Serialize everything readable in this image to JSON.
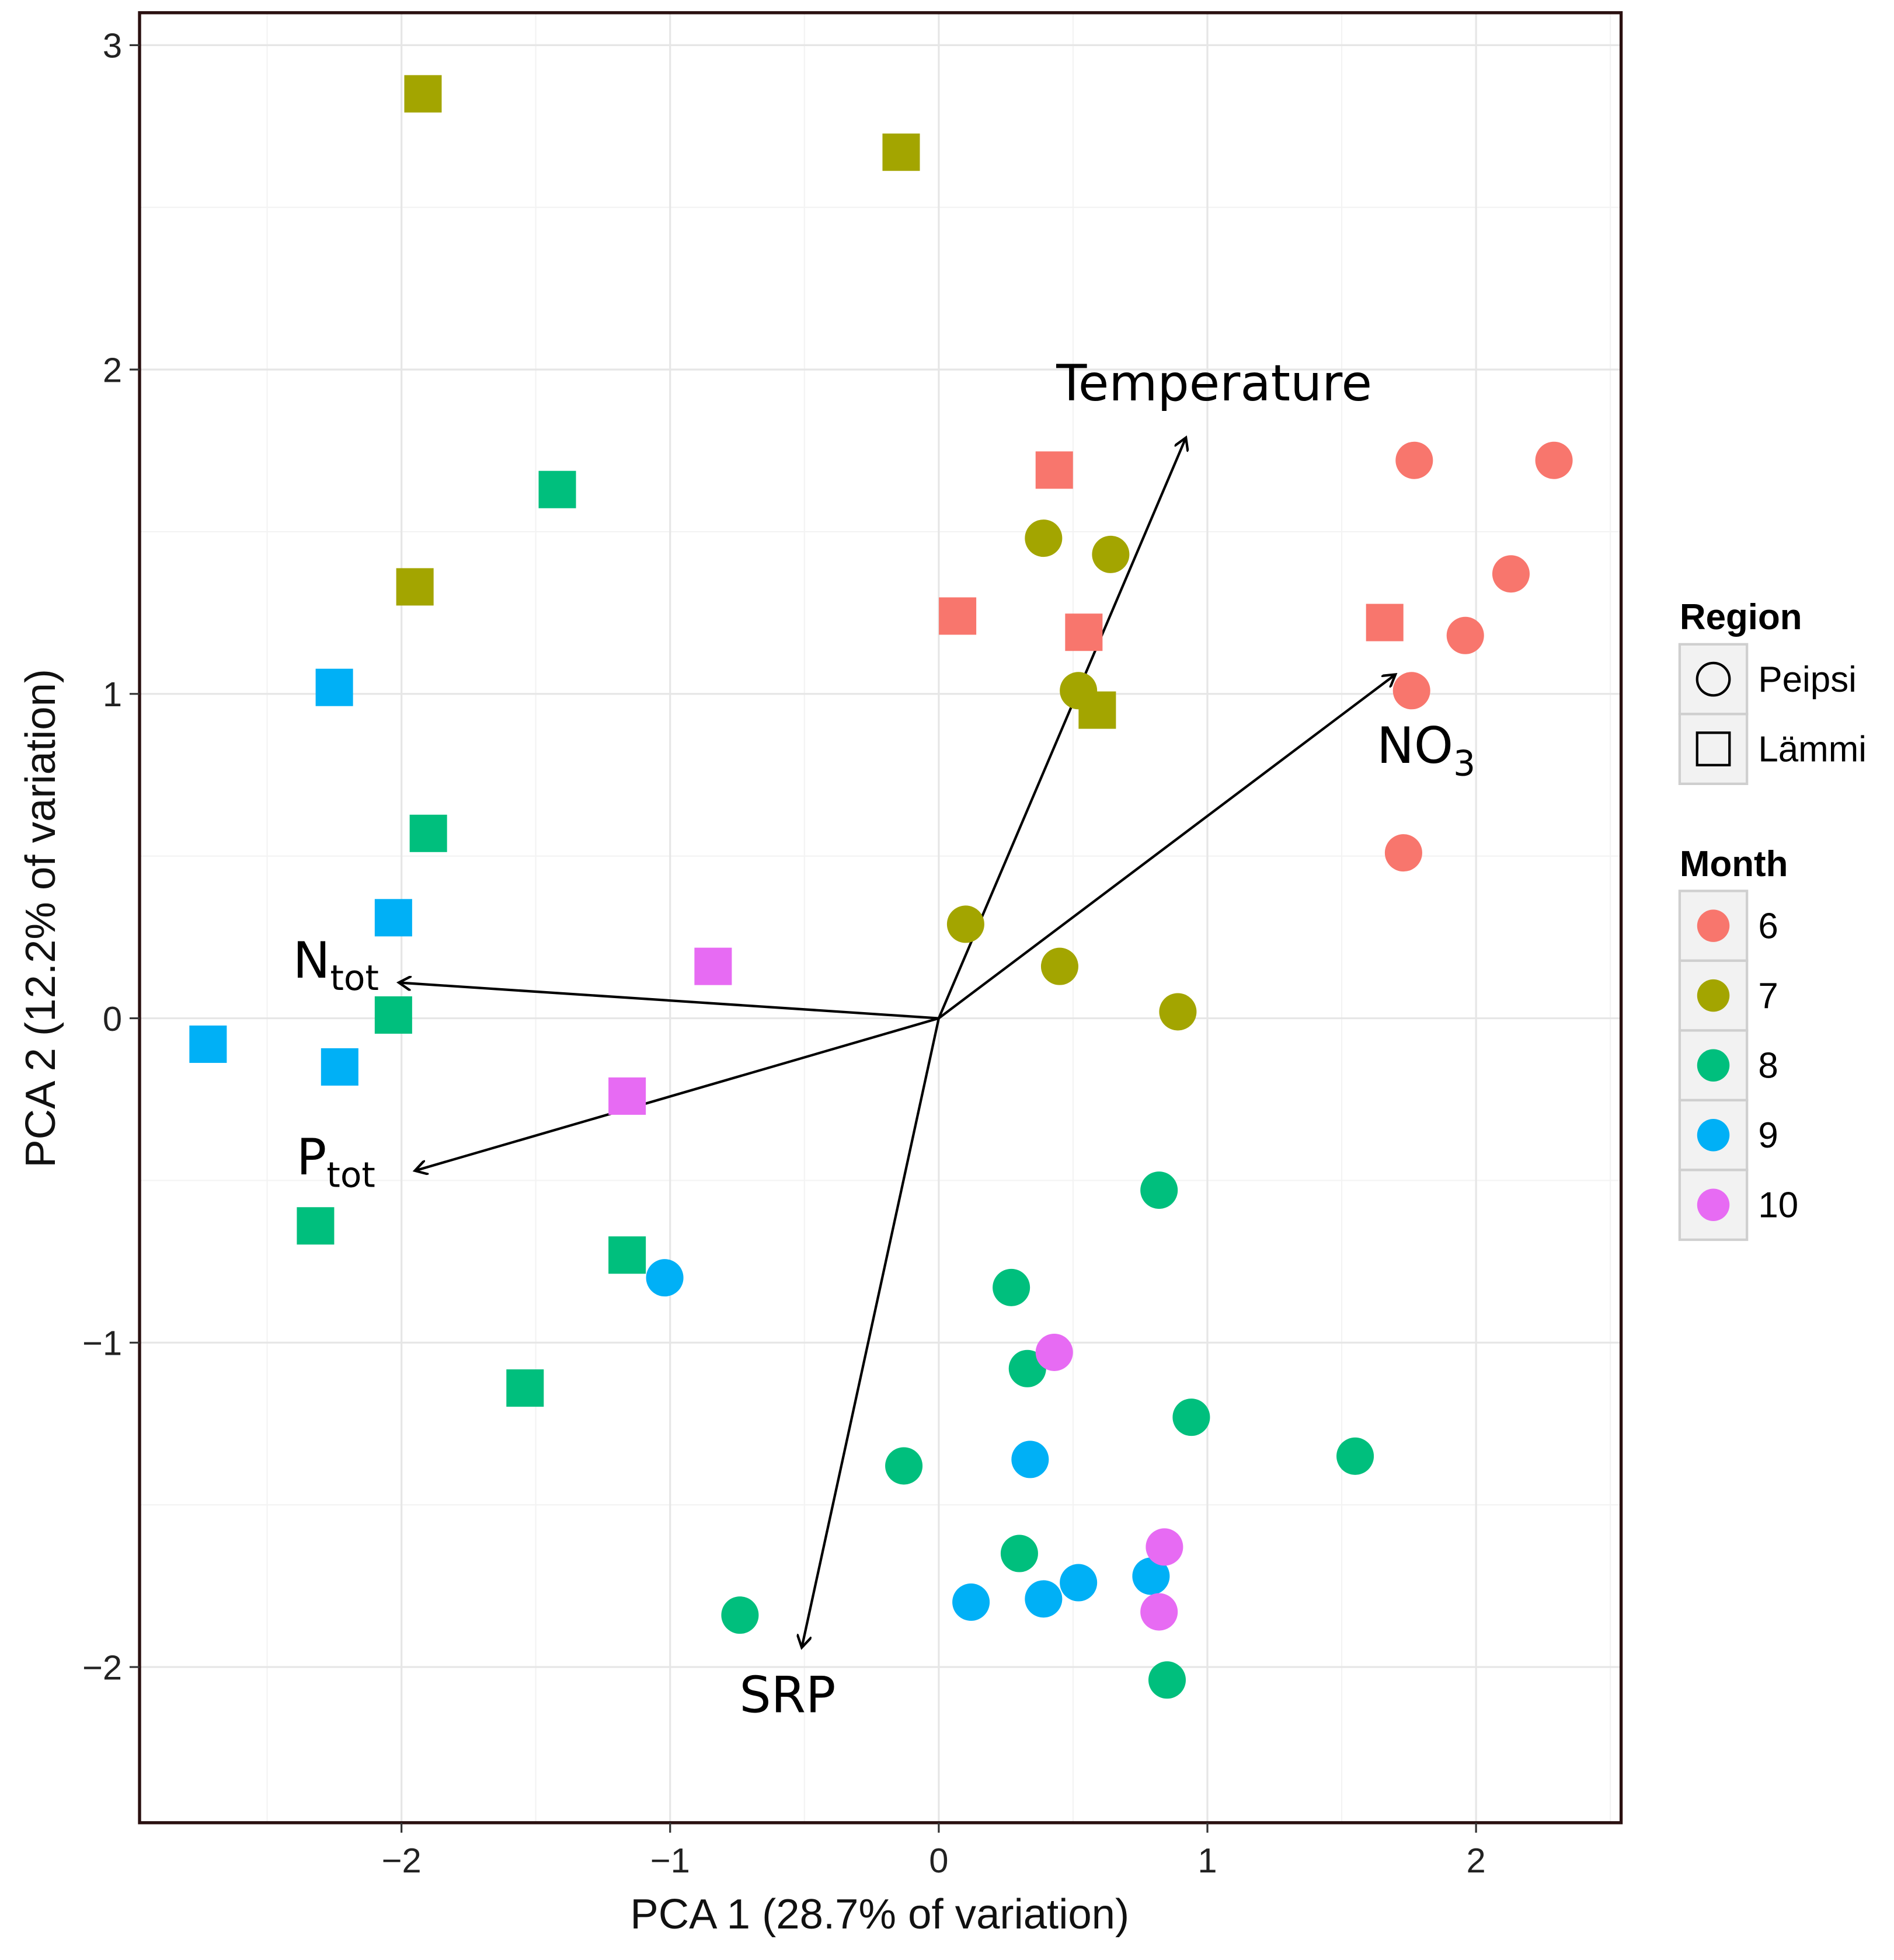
{
  "chart_data": {
    "type": "scatter",
    "title": "",
    "xlabel": "PCA 1 (28.7% of variation)",
    "ylabel": "PCA 2 (12.2% of variation)",
    "xlim": [
      -2.975,
      2.54
    ],
    "ylim": [
      -2.48,
      3.1
    ],
    "xticks": [
      -2,
      -1,
      0,
      1,
      2
    ],
    "yticks": [
      -2,
      -1,
      0,
      1,
      2,
      3
    ],
    "xtick_labels": [
      "−2",
      "−1",
      "0",
      "1",
      "2"
    ],
    "ytick_labels": [
      "−2",
      "−1",
      "0",
      "1",
      "2",
      "3"
    ],
    "grid": true,
    "legend_position": "right",
    "legend": {
      "region_title": "Region",
      "regions": [
        {
          "name": "Peipsi",
          "shape": "circle"
        },
        {
          "name": "Lämmi",
          "shape": "square"
        }
      ],
      "month_title": "Month",
      "months": [
        {
          "name": "6",
          "color": "#F8766D"
        },
        {
          "name": "7",
          "color": "#A3A500"
        },
        {
          "name": "8",
          "color": "#00BF7D"
        },
        {
          "name": "9",
          "color": "#00B0F6"
        },
        {
          "name": "10",
          "color": "#E76BF3"
        }
      ]
    },
    "points": [
      {
        "x": -1.92,
        "y": 2.85,
        "region": "Lämmi",
        "month": "7"
      },
      {
        "x": -0.14,
        "y": 2.67,
        "region": "Lämmi",
        "month": "7"
      },
      {
        "x": -1.95,
        "y": 1.33,
        "region": "Lämmi",
        "month": "7"
      },
      {
        "x": 0.59,
        "y": 0.95,
        "region": "Lämmi",
        "month": "7"
      },
      {
        "x": -1.42,
        "y": 1.63,
        "region": "Lämmi",
        "month": "8"
      },
      {
        "x": -1.9,
        "y": 0.57,
        "region": "Lämmi",
        "month": "8"
      },
      {
        "x": -2.03,
        "y": 0.01,
        "region": "Lämmi",
        "month": "8"
      },
      {
        "x": -2.32,
        "y": -0.64,
        "region": "Lämmi",
        "month": "8"
      },
      {
        "x": -1.16,
        "y": -0.73,
        "region": "Lämmi",
        "month": "8"
      },
      {
        "x": -1.54,
        "y": -1.14,
        "region": "Lämmi",
        "month": "8"
      },
      {
        "x": -2.25,
        "y": 1.02,
        "region": "Lämmi",
        "month": "9"
      },
      {
        "x": -2.03,
        "y": 0.31,
        "region": "Lämmi",
        "month": "9"
      },
      {
        "x": -2.72,
        "y": -0.08,
        "region": "Lämmi",
        "month": "9"
      },
      {
        "x": -2.23,
        "y": -0.15,
        "region": "Lämmi",
        "month": "9"
      },
      {
        "x": -0.84,
        "y": 0.16,
        "region": "Lämmi",
        "month": "10"
      },
      {
        "x": -1.16,
        "y": -0.24,
        "region": "Lämmi",
        "month": "10"
      },
      {
        "x": 0.43,
        "y": 1.69,
        "region": "Lämmi",
        "month": "6"
      },
      {
        "x": 0.07,
        "y": 1.24,
        "region": "Lämmi",
        "month": "6"
      },
      {
        "x": 0.54,
        "y": 1.19,
        "region": "Lämmi",
        "month": "6"
      },
      {
        "x": 1.66,
        "y": 1.22,
        "region": "Lämmi",
        "month": "6"
      },
      {
        "x": 1.77,
        "y": 1.72,
        "region": "Peipsi",
        "month": "6"
      },
      {
        "x": 2.29,
        "y": 1.72,
        "region": "Peipsi",
        "month": "6"
      },
      {
        "x": 2.13,
        "y": 1.37,
        "region": "Peipsi",
        "month": "6"
      },
      {
        "x": 1.96,
        "y": 1.18,
        "region": "Peipsi",
        "month": "6"
      },
      {
        "x": 1.76,
        "y": 1.01,
        "region": "Peipsi",
        "month": "6"
      },
      {
        "x": 1.73,
        "y": 0.51,
        "region": "Peipsi",
        "month": "6"
      },
      {
        "x": 0.39,
        "y": 1.48,
        "region": "Peipsi",
        "month": "7"
      },
      {
        "x": 0.64,
        "y": 1.43,
        "region": "Peipsi",
        "month": "7"
      },
      {
        "x": 0.52,
        "y": 1.01,
        "region": "Peipsi",
        "month": "7"
      },
      {
        "x": 0.1,
        "y": 0.29,
        "region": "Peipsi",
        "month": "7"
      },
      {
        "x": 0.45,
        "y": 0.16,
        "region": "Peipsi",
        "month": "7"
      },
      {
        "x": 0.89,
        "y": 0.02,
        "region": "Peipsi",
        "month": "7"
      },
      {
        "x": 0.82,
        "y": -0.53,
        "region": "Peipsi",
        "month": "8"
      },
      {
        "x": 0.27,
        "y": -0.83,
        "region": "Peipsi",
        "month": "8"
      },
      {
        "x": 0.33,
        "y": -1.08,
        "region": "Peipsi",
        "month": "8"
      },
      {
        "x": 0.94,
        "y": -1.23,
        "region": "Peipsi",
        "month": "8"
      },
      {
        "x": 1.55,
        "y": -1.35,
        "region": "Peipsi",
        "month": "8"
      },
      {
        "x": -0.13,
        "y": -1.38,
        "region": "Peipsi",
        "month": "8"
      },
      {
        "x": 0.3,
        "y": -1.65,
        "region": "Peipsi",
        "month": "8"
      },
      {
        "x": -0.74,
        "y": -1.84,
        "region": "Peipsi",
        "month": "8"
      },
      {
        "x": 0.85,
        "y": -2.04,
        "region": "Peipsi",
        "month": "8"
      },
      {
        "x": -1.02,
        "y": -0.8,
        "region": "Peipsi",
        "month": "9"
      },
      {
        "x": 0.34,
        "y": -1.36,
        "region": "Peipsi",
        "month": "9"
      },
      {
        "x": 0.12,
        "y": -1.8,
        "region": "Peipsi",
        "month": "9"
      },
      {
        "x": 0.39,
        "y": -1.79,
        "region": "Peipsi",
        "month": "9"
      },
      {
        "x": 0.52,
        "y": -1.74,
        "region": "Peipsi",
        "month": "9"
      },
      {
        "x": 0.79,
        "y": -1.72,
        "region": "Peipsi",
        "month": "9"
      },
      {
        "x": 0.43,
        "y": -1.03,
        "region": "Peipsi",
        "month": "10"
      },
      {
        "x": 0.84,
        "y": -1.63,
        "region": "Peipsi",
        "month": "10"
      },
      {
        "x": 0.82,
        "y": -1.83,
        "region": "Peipsi",
        "month": "10"
      }
    ],
    "vectors": [
      {
        "label": "Temperature",
        "sub": "",
        "x": 0.92,
        "y": 1.79
      },
      {
        "label": "NO",
        "sub": "3",
        "x": 1.7,
        "y": 1.06
      },
      {
        "label": "N",
        "sub": "tot",
        "x": -2.01,
        "y": 0.11
      },
      {
        "label": "P",
        "sub": "tot",
        "x": -1.95,
        "y": -0.47
      },
      {
        "label": "SRP",
        "sub": "",
        "x": -0.51,
        "y": -1.94
      }
    ]
  }
}
